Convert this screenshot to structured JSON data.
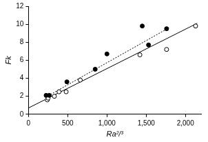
{
  "chart_data": {
    "type": "scatter",
    "x_label": "Ra²/³",
    "y_label": "Fk",
    "xlim": [
      0,
      2200
    ],
    "xticks": [
      0,
      500,
      1000,
      1500,
      2000
    ],
    "ylim": [
      0,
      12
    ],
    "yticks": [
      0,
      2,
      4,
      6,
      8,
      10,
      12
    ],
    "grid": false,
    "series": [
      {
        "type": "scatter",
        "marker": "filled",
        "color": "#000000",
        "x": [
          225,
          265,
          490,
          850,
          1000,
          1450,
          1530,
          1760
        ],
        "values": [
          2.1,
          2.1,
          3.6,
          5.0,
          6.7,
          9.8,
          7.7,
          9.5
        ]
      },
      {
        "type": "scatter",
        "marker": "open",
        "color": "#000000",
        "x": [
          240,
          250,
          330,
          390,
          480,
          660,
          1420,
          1760,
          2130
        ],
        "values": [
          1.6,
          1.8,
          2.0,
          2.5,
          2.5,
          3.8,
          6.6,
          7.2,
          9.8
        ]
      },
      {
        "type": "line",
        "line_style": "solid",
        "color": "#000000",
        "x": [
          0,
          2150
        ],
        "values": [
          0.7,
          10.1
        ]
      },
      {
        "type": "line",
        "line_style": "dotted",
        "color": "#000000",
        "x": [
          220,
          1790
        ],
        "values": [
          1.9,
          9.6
        ]
      }
    ]
  }
}
